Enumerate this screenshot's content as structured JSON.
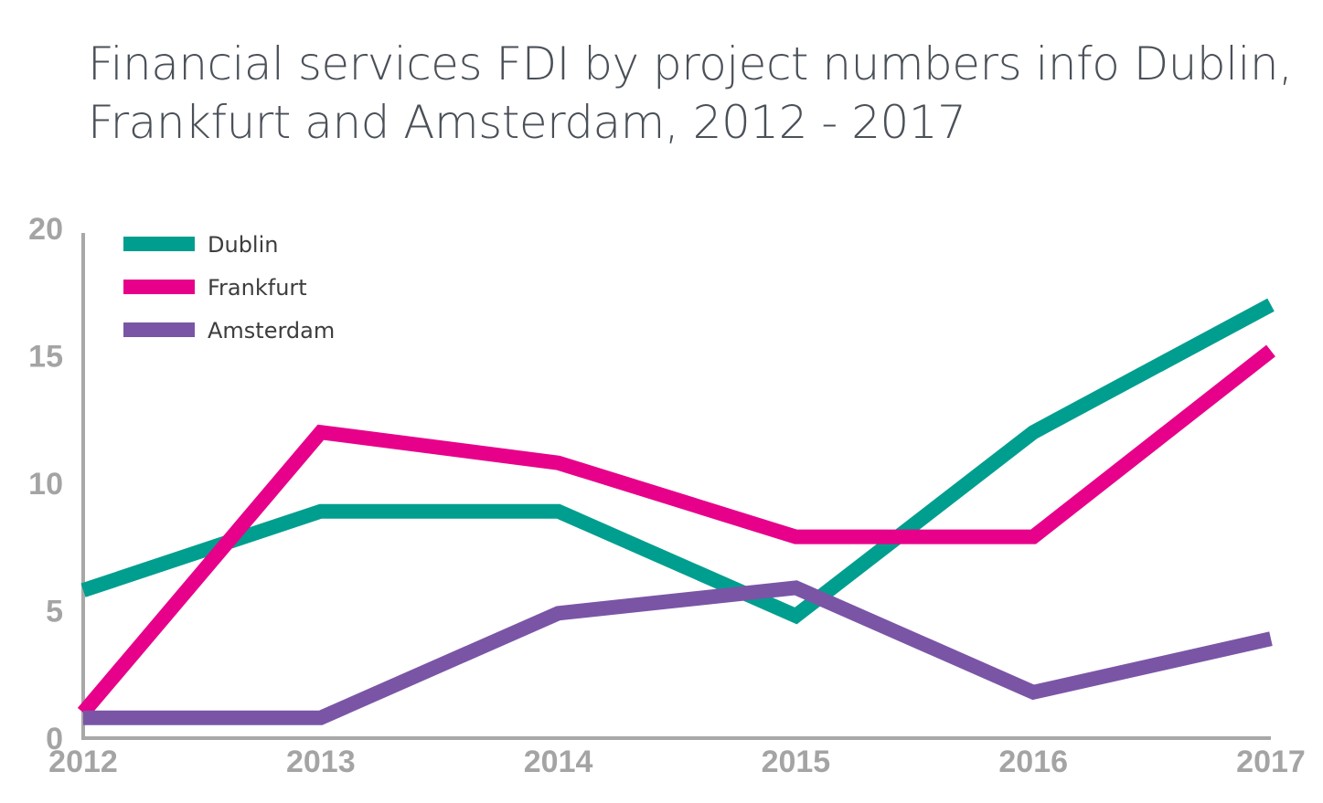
{
  "title_line1": "Financial services FDI by project numbers info Dublin,",
  "title_line2": "Frankfurt and Amsterdam, 2012 - 2017",
  "chart_data": {
    "type": "line",
    "title": "Financial services FDI by project numbers info Dublin, Frankfurt and Amsterdam, 2012 - 2017",
    "xlabel": "",
    "ylabel": "",
    "x": [
      "2012",
      "2013",
      "2014",
      "2015",
      "2016",
      "2017"
    ],
    "y_ticks": [
      "0",
      "5",
      "10",
      "15",
      "20"
    ],
    "ylim": [
      0,
      20
    ],
    "grid": false,
    "legend_position": "top-left",
    "series": [
      {
        "name": "Dublin",
        "color": "#009e8f",
        "values": [
          5.8,
          8.9,
          8.9,
          4.8,
          12,
          17
        ]
      },
      {
        "name": "Frankfurt",
        "color": "#e7008a",
        "values": [
          1,
          12,
          10.8,
          7.9,
          7.9,
          15.2
        ]
      },
      {
        "name": "Amsterdam",
        "color": "#7a55a6",
        "values": [
          0.8,
          0.8,
          4.9,
          5.9,
          1.8,
          3.9
        ]
      }
    ]
  }
}
